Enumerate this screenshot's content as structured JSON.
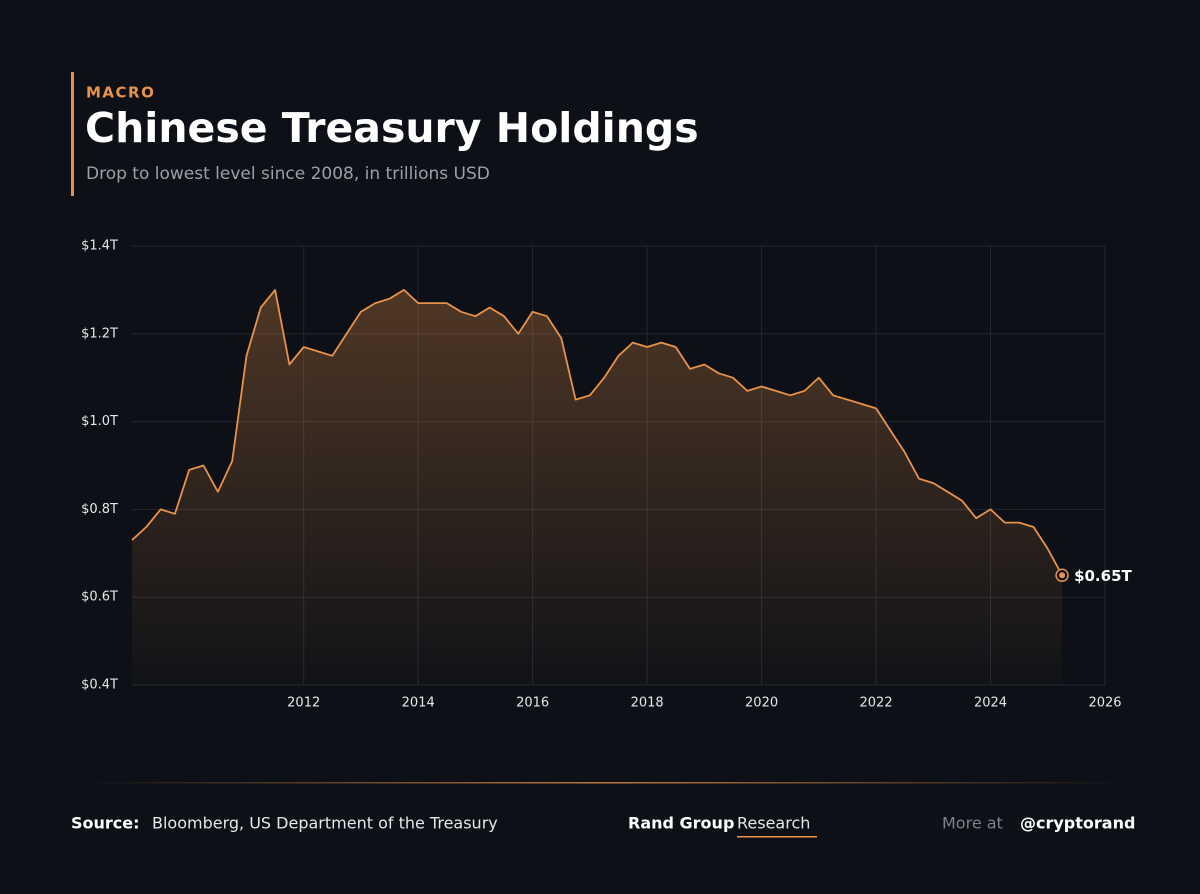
{
  "kicker": "MACRO",
  "chart_data": {
    "type": "area",
    "title": "Chinese Treasury Holdings",
    "subtitle": "Drop to lowest level since 2008, in trillions USD",
    "x": [
      2009,
      2009.25,
      2009.5,
      2009.75,
      2010,
      2010.25,
      2010.5,
      2010.75,
      2011,
      2011.25,
      2011.5,
      2011.75,
      2012,
      2012.25,
      2012.5,
      2012.75,
      2013,
      2013.25,
      2013.5,
      2013.75,
      2014,
      2014.25,
      2014.5,
      2014.75,
      2015,
      2015.25,
      2015.5,
      2015.75,
      2016,
      2016.25,
      2016.5,
      2016.75,
      2017,
      2017.25,
      2017.5,
      2017.75,
      2018,
      2018.25,
      2018.5,
      2018.75,
      2019,
      2019.25,
      2019.5,
      2019.75,
      2020,
      2020.25,
      2020.5,
      2020.75,
      2021,
      2021.25,
      2021.5,
      2021.75,
      2022,
      2022.25,
      2022.5,
      2022.75,
      2023,
      2023.25,
      2023.5,
      2023.75,
      2024,
      2024.25,
      2024.5,
      2024.75,
      2025,
      2025.25
    ],
    "values": [
      0.73,
      0.76,
      0.8,
      0.79,
      0.89,
      0.9,
      0.84,
      0.91,
      1.15,
      1.26,
      1.3,
      1.13,
      1.17,
      1.16,
      1.15,
      1.2,
      1.25,
      1.27,
      1.28,
      1.3,
      1.27,
      1.27,
      1.27,
      1.25,
      1.24,
      1.26,
      1.24,
      1.2,
      1.25,
      1.24,
      1.19,
      1.05,
      1.06,
      1.1,
      1.15,
      1.18,
      1.17,
      1.18,
      1.17,
      1.12,
      1.13,
      1.11,
      1.1,
      1.07,
      1.08,
      1.07,
      1.06,
      1.07,
      1.1,
      1.06,
      1.05,
      1.04,
      1.03,
      0.98,
      0.93,
      0.87,
      0.86,
      0.84,
      0.82,
      0.78,
      0.8,
      0.77,
      0.77,
      0.76,
      0.71,
      0.65
    ],
    "color": "#e8924a",
    "xlim": [
      2009,
      2026
    ],
    "xticks": [
      2012,
      2014,
      2016,
      2018,
      2020,
      2022,
      2024,
      2026
    ],
    "ylim": [
      0.4,
      1.4
    ],
    "yticks": [
      {
        "value": 0.4,
        "label": "$0.4T"
      },
      {
        "value": 0.6,
        "label": "$0.6T"
      },
      {
        "value": 0.8,
        "label": "$0.8T"
      },
      {
        "value": 1.0,
        "label": "$1.0T"
      },
      {
        "value": 1.2,
        "label": "$1.2T"
      },
      {
        "value": 1.4,
        "label": "$1.4T"
      }
    ],
    "grid": true,
    "annotations": [
      {
        "x": 2025.25,
        "y": 0.65,
        "label": "$0.65T"
      }
    ]
  },
  "footer": {
    "source_label": "Source:",
    "source": "Bloomberg, US Department of the Treasury",
    "brand": "Rand Group",
    "brand_suffix": "Research",
    "more": "More at",
    "handle": "@cryptorand"
  }
}
